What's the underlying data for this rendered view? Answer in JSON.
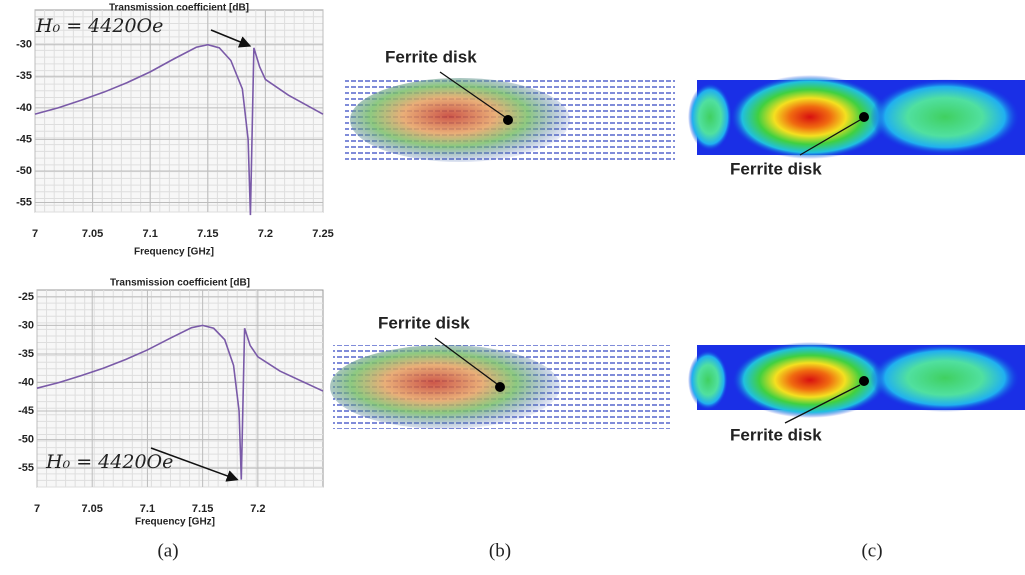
{
  "chart_data": [
    {
      "type": "line",
      "title": "Transmission coefficient [dB]",
      "x_label": "Frequency [GHz]",
      "annotation": "H₀ = 4420Oe",
      "x": [
        7,
        7.02,
        7.04,
        7.06,
        7.08,
        7.1,
        7.12,
        7.14,
        7.15,
        7.16,
        7.17,
        7.18,
        7.185,
        7.187,
        7.19,
        7.195,
        7.2,
        7.22,
        7.25
      ],
      "series": [
        {
          "color": "#7a5aa8",
          "values": [
            -41,
            -40,
            -38.8,
            -37.5,
            -36,
            -34.3,
            -32.3,
            -30.4,
            -30,
            -30.5,
            -32.5,
            -37,
            -45,
            -57,
            -30.5,
            -33.5,
            -35.5,
            -38,
            -41
          ]
        }
      ],
      "xlim": [
        7,
        7.25
      ],
      "ylim": [
        -56.5,
        -24.5
      ],
      "xticks": [
        7,
        7.05,
        7.1,
        7.15,
        7.2,
        7.25
      ],
      "yticks": [
        -30,
        -35,
        -40,
        -45,
        -50,
        -55
      ],
      "grid": true
    },
    {
      "type": "line",
      "title": "Transmission coefficient [dB]",
      "x_label": "Frequency [GHz]",
      "annotation": "H₀ = 4420Oe",
      "x": [
        7,
        7.02,
        7.04,
        7.06,
        7.08,
        7.1,
        7.12,
        7.14,
        7.15,
        7.16,
        7.17,
        7.178,
        7.183,
        7.185,
        7.188,
        7.193,
        7.2,
        7.22,
        7.259
      ],
      "series": [
        {
          "color": "#7a5aa8",
          "values": [
            -41,
            -40,
            -38.8,
            -37.5,
            -36,
            -34.3,
            -32.3,
            -30.4,
            -30,
            -30.5,
            -32.5,
            -37,
            -45,
            -57,
            -30.5,
            -33.5,
            -35.5,
            -38,
            -41.5
          ]
        }
      ],
      "xlim": [
        7,
        7.259
      ],
      "ylim": [
        -58.3,
        -23.8
      ],
      "xticks": [
        7,
        7.05,
        7.1,
        7.15,
        7.2
      ],
      "yticks": [
        -25,
        -30,
        -35,
        -40,
        -45,
        -50,
        -55
      ],
      "grid": true
    }
  ],
  "field_maps": [
    {
      "label": "Ferrite disk"
    },
    {
      "label": "Ferrite disk"
    },
    {
      "label": "Ferrite disk"
    },
    {
      "label": "Ferrite disk"
    }
  ],
  "panel_labels": [
    "(a)",
    "(b)",
    "(c)"
  ]
}
